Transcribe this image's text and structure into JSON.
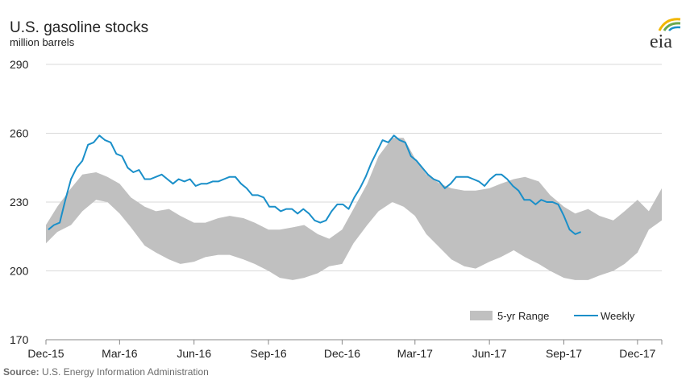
{
  "chart_data": {
    "type": "area",
    "title": "U.S. gasoline stocks",
    "subtitle": "million barrels",
    "source_label": "Source:",
    "source_text": "U.S. Energy Information Administration",
    "logo_text": "eia",
    "ylim": [
      170,
      290
    ],
    "yticks": [
      170,
      200,
      230,
      260,
      290
    ],
    "x_start": "2015-12-01",
    "x_end": "2017-12-31",
    "x_ticks": [
      {
        "date": "2015-12-01",
        "label": "Dec-15"
      },
      {
        "date": "2016-03-01",
        "label": "Mar-16"
      },
      {
        "date": "2016-06-01",
        "label": "Jun-16"
      },
      {
        "date": "2016-09-01",
        "label": "Sep-16"
      },
      {
        "date": "2016-12-01",
        "label": "Dec-16"
      },
      {
        "date": "2017-03-01",
        "label": "Mar-17"
      },
      {
        "date": "2017-06-01",
        "label": "Jun-17"
      },
      {
        "date": "2017-09-01",
        "label": "Sep-17"
      },
      {
        "date": "2017-12-01",
        "label": "Dec-17"
      }
    ],
    "grid": true,
    "legend_position": "bottom-right",
    "series": [
      {
        "name": "5-yr Range",
        "type": "band",
        "color": "#c0c0c0",
        "x": [
          "2015-12-01",
          "2015-12-15",
          "2016-01-01",
          "2016-01-15",
          "2016-02-01",
          "2016-02-15",
          "2016-03-01",
          "2016-03-15",
          "2016-04-01",
          "2016-04-15",
          "2016-05-01",
          "2016-05-15",
          "2016-06-01",
          "2016-06-15",
          "2016-07-01",
          "2016-07-15",
          "2016-08-01",
          "2016-08-15",
          "2016-09-01",
          "2016-09-15",
          "2016-10-01",
          "2016-10-15",
          "2016-11-01",
          "2016-11-15",
          "2016-12-01",
          "2016-12-15",
          "2017-01-01",
          "2017-01-15",
          "2017-02-01",
          "2017-02-15",
          "2017-03-01",
          "2017-03-15",
          "2017-04-01",
          "2017-04-15",
          "2017-05-01",
          "2017-05-15",
          "2017-06-01",
          "2017-06-15",
          "2017-07-01",
          "2017-07-15",
          "2017-08-01",
          "2017-08-15",
          "2017-09-01",
          "2017-09-15",
          "2017-10-01",
          "2017-10-15",
          "2017-11-01",
          "2017-11-15",
          "2017-12-01",
          "2017-12-15",
          "2017-12-31"
        ],
        "low": [
          212,
          217,
          220,
          226,
          231,
          230,
          225,
          219,
          211,
          208,
          205,
          203,
          204,
          206,
          207,
          207,
          205,
          203,
          200,
          197,
          196,
          197,
          199,
          202,
          203,
          212,
          220,
          226,
          230,
          228,
          224,
          216,
          210,
          205,
          202,
          201,
          204,
          206,
          209,
          206,
          203,
          200,
          197,
          196,
          196,
          198,
          200,
          203,
          208,
          218,
          222
        ],
        "high": [
          220,
          228,
          236,
          242,
          243,
          241,
          238,
          232,
          228,
          226,
          227,
          224,
          221,
          221,
          223,
          224,
          223,
          221,
          218,
          218,
          219,
          220,
          216,
          214,
          218,
          227,
          238,
          250,
          258,
          258,
          249,
          242,
          238,
          236,
          235,
          235,
          236,
          238,
          240,
          241,
          239,
          233,
          228,
          225,
          227,
          224,
          222,
          226,
          231,
          226,
          236
        ]
      },
      {
        "name": "Weekly",
        "type": "line",
        "color": "#1a8fc9",
        "x": [
          "2015-12-04",
          "2015-12-11",
          "2015-12-18",
          "2015-12-25",
          "2016-01-01",
          "2016-01-08",
          "2016-01-15",
          "2016-01-22",
          "2016-01-29",
          "2016-02-05",
          "2016-02-12",
          "2016-02-19",
          "2016-02-26",
          "2016-03-04",
          "2016-03-11",
          "2016-03-18",
          "2016-03-25",
          "2016-04-01",
          "2016-04-08",
          "2016-04-15",
          "2016-04-22",
          "2016-04-29",
          "2016-05-06",
          "2016-05-13",
          "2016-05-20",
          "2016-05-27",
          "2016-06-03",
          "2016-06-10",
          "2016-06-17",
          "2016-06-24",
          "2016-07-01",
          "2016-07-08",
          "2016-07-15",
          "2016-07-22",
          "2016-07-29",
          "2016-08-05",
          "2016-08-12",
          "2016-08-19",
          "2016-08-26",
          "2016-09-02",
          "2016-09-09",
          "2016-09-16",
          "2016-09-23",
          "2016-09-30",
          "2016-10-07",
          "2016-10-14",
          "2016-10-21",
          "2016-10-28",
          "2016-11-04",
          "2016-11-11",
          "2016-11-18",
          "2016-11-25",
          "2016-12-02",
          "2016-12-09",
          "2016-12-16",
          "2016-12-23",
          "2016-12-30",
          "2017-01-06",
          "2017-01-13",
          "2017-01-20",
          "2017-01-27",
          "2017-02-03",
          "2017-02-10",
          "2017-02-17",
          "2017-02-24",
          "2017-03-03",
          "2017-03-10",
          "2017-03-17",
          "2017-03-24",
          "2017-03-31",
          "2017-04-07",
          "2017-04-14",
          "2017-04-21",
          "2017-04-28",
          "2017-05-05",
          "2017-05-12",
          "2017-05-19",
          "2017-05-26",
          "2017-06-02",
          "2017-06-09",
          "2017-06-16",
          "2017-06-23",
          "2017-06-30",
          "2017-07-07",
          "2017-07-14",
          "2017-07-21",
          "2017-07-28",
          "2017-08-04",
          "2017-08-11",
          "2017-08-18",
          "2017-08-25",
          "2017-09-01",
          "2017-09-08",
          "2017-09-15",
          "2017-09-22"
        ],
        "values": [
          218,
          220,
          221,
          231,
          240,
          245,
          248,
          255,
          256,
          259,
          257,
          256,
          251,
          250,
          245,
          243,
          244,
          240,
          240,
          241,
          242,
          240,
          238,
          240,
          239,
          240,
          237,
          238,
          238,
          239,
          239,
          240,
          241,
          241,
          238,
          236,
          233,
          233,
          232,
          228,
          228,
          226,
          227,
          227,
          225,
          227,
          225,
          222,
          221,
          222,
          226,
          229,
          229,
          227,
          232,
          236,
          241,
          247,
          252,
          257,
          256,
          259,
          257,
          256,
          250,
          248,
          245,
          242,
          240,
          239,
          236,
          238,
          241,
          241,
          241,
          240,
          239,
          237,
          240,
          242,
          242,
          240,
          237,
          235,
          231,
          231,
          229,
          231,
          230,
          230,
          229,
          224,
          218,
          216,
          217
        ]
      }
    ]
  }
}
